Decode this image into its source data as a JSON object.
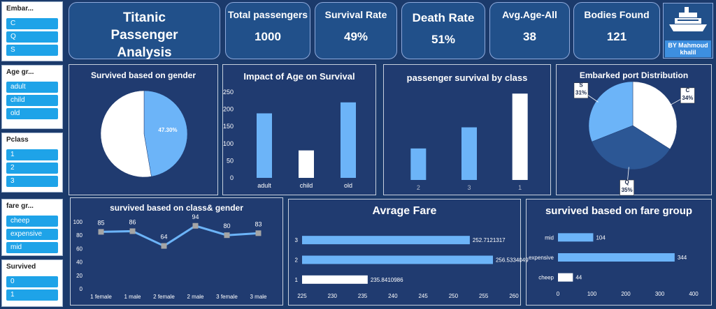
{
  "slicers": [
    {
      "title": "Embar...",
      "items": [
        "C",
        "Q",
        "S"
      ]
    },
    {
      "title": "Age gr...",
      "items": [
        "adult",
        "child",
        "old"
      ]
    },
    {
      "title": "Pclass",
      "items": [
        "1",
        "2",
        "3"
      ]
    },
    {
      "title": "fare gr...",
      "items": [
        "cheep",
        "expensive",
        "mid"
      ]
    },
    {
      "title": "Survived",
      "items": [
        "0",
        "1"
      ]
    }
  ],
  "header": {
    "title": "Titanic Passenger Analysis",
    "author": "BY Mahmoud khalil"
  },
  "kpis": [
    {
      "label": "Total passengers",
      "value": 1000
    },
    {
      "label": "Survival Rate",
      "value": "49%"
    },
    {
      "label": "Death Rate",
      "value": "51%"
    },
    {
      "label": "Avg.Age-All",
      "value": 38
    },
    {
      "label": "Bodies Found",
      "value": 121
    }
  ],
  "chart_data": [
    {
      "type": "pie",
      "title": "Survived based on gender",
      "values": [
        47.3,
        52.7
      ],
      "value_labels": [
        "47.30%",
        "52.70%"
      ],
      "colors": [
        "#6cb4f8",
        "#ffffff"
      ]
    },
    {
      "type": "bar",
      "title": "Impact of Age on Survival",
      "categories": [
        "adult",
        "child",
        "old"
      ],
      "values": [
        188,
        80,
        220
      ],
      "colors": [
        "#6cb4f8",
        "#ffffff",
        "#6cb4f8"
      ],
      "ylim": [
        0,
        250
      ],
      "yticks": [
        0,
        50,
        100,
        150,
        200,
        250
      ]
    },
    {
      "type": "bar",
      "title": "passenger survival by class",
      "categories": [
        "2",
        "3",
        "1"
      ],
      "values": [
        85,
        142,
        233
      ],
      "colors": [
        "#6cb4f8",
        "#6cb4f8",
        "#ffffff"
      ]
    },
    {
      "type": "pie",
      "title": "Embarked port Distribution",
      "categories": [
        "C",
        "Q",
        "S"
      ],
      "values": [
        34,
        35,
        31
      ],
      "value_labels": [
        "34%",
        "35%",
        "31%"
      ],
      "colors": [
        "#ffffff",
        "#2c5795",
        "#6cb4f8"
      ]
    },
    {
      "type": "line",
      "title": "survived based on class& gender",
      "categories": [
        "1 female",
        "1 male",
        "2 female",
        "2 male",
        "3 female",
        "3 male"
      ],
      "values": [
        85,
        86,
        64,
        94,
        80,
        83
      ],
      "color": "#6cb4f8",
      "marker_color": "#a5a5a5",
      "ylim": [
        0,
        100
      ],
      "yticks": [
        0,
        20,
        40,
        60,
        80,
        100
      ]
    },
    {
      "type": "hbar",
      "title": "Avrage Fare",
      "categories": [
        "3",
        "2",
        "1"
      ],
      "values": [
        252.7121317,
        256.5334049,
        235.8410986
      ],
      "colors": [
        "#6cb4f8",
        "#6cb4f8",
        "#ffffff"
      ],
      "xlim": [
        225,
        260
      ],
      "xticks": [
        225,
        230,
        235,
        240,
        245,
        250,
        255,
        260
      ]
    },
    {
      "type": "hbar",
      "title": "survived based on fare group",
      "categories": [
        "mid",
        "expensive",
        "cheep"
      ],
      "values": [
        104,
        344,
        44
      ],
      "colors": [
        "#6cb4f8",
        "#6cb4f8",
        "#ffffff"
      ],
      "xlim": [
        0,
        400
      ],
      "xticks": [
        0,
        100,
        200,
        300,
        400
      ]
    }
  ]
}
